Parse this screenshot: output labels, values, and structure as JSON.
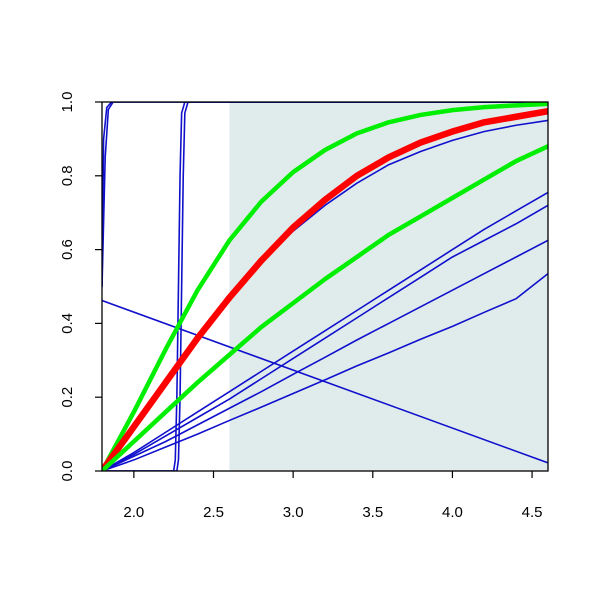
{
  "chart_data": {
    "type": "line",
    "title": "",
    "xlabel": "",
    "ylabel": "",
    "xlim": [
      1.8,
      4.6
    ],
    "ylim": [
      0.0,
      1.0
    ],
    "x_ticks": [
      2.0,
      2.5,
      3.0,
      3.5,
      4.0,
      4.5
    ],
    "x_tick_labels": [
      "2.0",
      "2.5",
      "3.0",
      "3.5",
      "4.0",
      "4.5"
    ],
    "y_ticks": [
      0.0,
      0.2,
      0.4,
      0.6,
      0.8,
      1.0
    ],
    "y_tick_labels": [
      "0.0",
      "0.2",
      "0.4",
      "0.6",
      "0.8",
      "1.0"
    ],
    "grid": false,
    "legend": "none",
    "shaded_region": {
      "x_from": 2.6,
      "x_to": 4.6,
      "color": "#e0ecec"
    },
    "colors": {
      "blue": "#1010cc",
      "red": "#ff0000",
      "green": "#00ee00",
      "frame": "#000000"
    },
    "series": [
      {
        "color": "blue",
        "width": 1.6,
        "x": [
          1.8,
          1.82,
          1.84,
          1.87,
          1.9,
          4.6
        ],
        "y": [
          0.5,
          0.85,
          0.98,
          1.0,
          1.0,
          1.0
        ]
      },
      {
        "color": "blue",
        "width": 1.6,
        "x": [
          1.8,
          1.81,
          1.83,
          1.86,
          1.9,
          4.6
        ],
        "y": [
          0.5,
          0.9,
          0.985,
          1.0,
          1.0,
          1.0
        ]
      },
      {
        "color": "blue",
        "width": 1.6,
        "x": [
          1.8,
          2.25,
          2.26,
          2.27,
          2.28,
          2.29,
          2.3,
          2.32,
          2.6,
          4.6
        ],
        "y": [
          0.0,
          0.0,
          0.03,
          0.2,
          0.5,
          0.8,
          0.97,
          1.0,
          1.0,
          1.0
        ]
      },
      {
        "color": "blue",
        "width": 1.6,
        "x": [
          1.8,
          2.27,
          2.28,
          2.29,
          2.3,
          2.31,
          2.32,
          2.34,
          2.6,
          4.6
        ],
        "y": [
          0.0,
          0.0,
          0.03,
          0.2,
          0.5,
          0.8,
          0.97,
          1.0,
          1.0,
          1.0
        ]
      },
      {
        "color": "blue",
        "width": 1.6,
        "x": [
          1.8,
          4.6
        ],
        "y": [
          0.462,
          0.022
        ]
      },
      {
        "color": "blue",
        "width": 1.6,
        "x": [
          1.8,
          2.0,
          2.2,
          2.4,
          2.6,
          2.8,
          3.0,
          3.2,
          3.4,
          3.6,
          3.8,
          4.0,
          4.2,
          4.4,
          4.6
        ],
        "y": [
          0.0,
          0.11,
          0.23,
          0.36,
          0.47,
          0.57,
          0.65,
          0.72,
          0.78,
          0.83,
          0.866,
          0.896,
          0.92,
          0.937,
          0.95
        ]
      },
      {
        "color": "blue",
        "width": 1.6,
        "x": [
          1.8,
          2.0,
          2.2,
          2.4,
          2.6,
          2.8,
          3.0,
          3.2,
          3.4,
          3.6,
          3.8,
          4.0,
          4.2,
          4.4,
          4.6
        ],
        "y": [
          0.0,
          0.05,
          0.105,
          0.16,
          0.215,
          0.27,
          0.325,
          0.38,
          0.435,
          0.49,
          0.545,
          0.6,
          0.655,
          0.705,
          0.755
        ]
      },
      {
        "color": "blue",
        "width": 1.6,
        "x": [
          1.8,
          2.0,
          2.2,
          2.4,
          2.6,
          2.8,
          3.0,
          3.2,
          3.4,
          3.6,
          3.8,
          4.0,
          4.2,
          4.4,
          4.6
        ],
        "y": [
          0.0,
          0.045,
          0.095,
          0.145,
          0.195,
          0.25,
          0.305,
          0.36,
          0.415,
          0.47,
          0.525,
          0.58,
          0.625,
          0.67,
          0.72
        ]
      },
      {
        "color": "blue",
        "width": 1.6,
        "x": [
          1.8,
          2.0,
          2.2,
          2.4,
          2.6,
          2.8,
          3.0,
          3.2,
          3.4,
          3.6,
          3.8,
          4.0,
          4.2,
          4.4,
          4.6
        ],
        "y": [
          0.0,
          0.04,
          0.08,
          0.125,
          0.17,
          0.215,
          0.262,
          0.308,
          0.355,
          0.4,
          0.445,
          0.49,
          0.535,
          0.58,
          0.625
        ]
      },
      {
        "color": "blue",
        "width": 1.6,
        "x": [
          1.8,
          2.0,
          2.2,
          2.4,
          2.6,
          2.8,
          3.0,
          3.2,
          3.4,
          3.6,
          3.8,
          4.0,
          4.2,
          4.4,
          4.6
        ],
        "y": [
          0.0,
          0.03,
          0.065,
          0.1,
          0.137,
          0.173,
          0.21,
          0.247,
          0.285,
          0.32,
          0.357,
          0.392,
          0.43,
          0.467,
          0.535
        ]
      },
      {
        "color": "green",
        "width": 4.5,
        "x": [
          1.8,
          2.0,
          2.2,
          2.4,
          2.6,
          2.8,
          3.0,
          3.2,
          3.4,
          3.6,
          3.8,
          4.0,
          4.2,
          4.4,
          4.6
        ],
        "y": [
          0.0,
          0.16,
          0.33,
          0.49,
          0.625,
          0.73,
          0.81,
          0.87,
          0.915,
          0.945,
          0.965,
          0.978,
          0.986,
          0.991,
          0.995
        ]
      },
      {
        "color": "red",
        "width": 6.5,
        "x": [
          1.8,
          2.0,
          2.2,
          2.4,
          2.6,
          2.8,
          3.0,
          3.2,
          3.4,
          3.6,
          3.8,
          4.0,
          4.2,
          4.4,
          4.6
        ],
        "y": [
          0.0,
          0.12,
          0.24,
          0.36,
          0.47,
          0.57,
          0.66,
          0.735,
          0.8,
          0.85,
          0.89,
          0.92,
          0.945,
          0.96,
          0.975
        ]
      },
      {
        "color": "green",
        "width": 4.5,
        "x": [
          1.8,
          2.0,
          2.2,
          2.4,
          2.6,
          2.8,
          3.0,
          3.2,
          3.4,
          3.6,
          3.8,
          4.0,
          4.2,
          4.4,
          4.6
        ],
        "y": [
          0.0,
          0.08,
          0.16,
          0.24,
          0.315,
          0.39,
          0.455,
          0.52,
          0.58,
          0.64,
          0.69,
          0.74,
          0.79,
          0.84,
          0.88
        ]
      }
    ]
  }
}
